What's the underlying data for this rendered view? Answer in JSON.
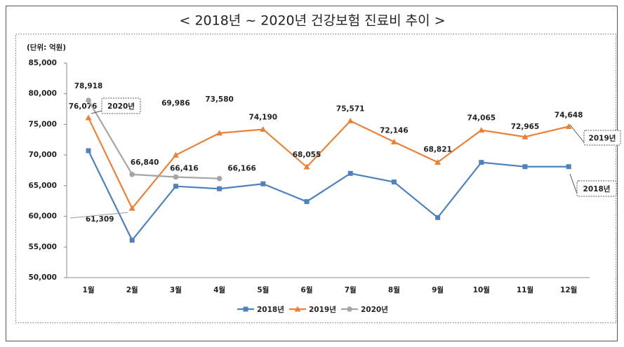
{
  "chart_data": {
    "type": "line",
    "title": "< 2018년 ~ 2020년 건강보험 진료비 추이 >",
    "y_unit": "(단위: 억원)",
    "categories": [
      "1월",
      "2월",
      "3월",
      "4월",
      "5월",
      "6월",
      "7월",
      "8월",
      "9월",
      "10월",
      "11월",
      "12월"
    ],
    "series": [
      {
        "name": "2018년",
        "color": "#4f81bd",
        "marker": "square",
        "values": [
          70700,
          56100,
          64900,
          64500,
          65300,
          62400,
          67000,
          65600,
          59800,
          68800,
          68100,
          68100
        ]
      },
      {
        "name": "2019년",
        "color": "#e8823a",
        "marker": "triangle",
        "values": [
          76076,
          61309,
          69986,
          73580,
          74190,
          68055,
          75571,
          72146,
          68821,
          74065,
          72965,
          74648
        ],
        "value_labels": [
          "76,076",
          "61,309",
          "69,986",
          "73,580",
          "74,190",
          "68,055",
          "75,571",
          "72,146",
          "68,821",
          "74,065",
          "72,965",
          "74,648"
        ]
      },
      {
        "name": "2020년",
        "color": "#a5a5a5",
        "marker": "circle",
        "values": [
          78918,
          66840,
          66416,
          66166,
          null,
          null,
          null,
          null,
          null,
          null,
          null,
          null
        ],
        "value_labels": [
          "78,918",
          "66,840",
          "66,416",
          "66,166",
          null,
          null,
          null,
          null,
          null,
          null,
          null,
          null
        ]
      }
    ],
    "ylim": [
      50000,
      85000
    ],
    "yticks": [
      {
        "value": 50000,
        "label": "50,000"
      },
      {
        "value": 55000,
        "label": "55,000"
      },
      {
        "value": 60000,
        "label": "60,000"
      },
      {
        "value": 65000,
        "label": "65,000"
      },
      {
        "value": 70000,
        "label": "70,000"
      },
      {
        "value": 75000,
        "label": "75,000"
      },
      {
        "value": 80000,
        "label": "80,000"
      },
      {
        "value": 85000,
        "label": "85,000"
      }
    ],
    "grid": false,
    "legend": "bottom"
  }
}
